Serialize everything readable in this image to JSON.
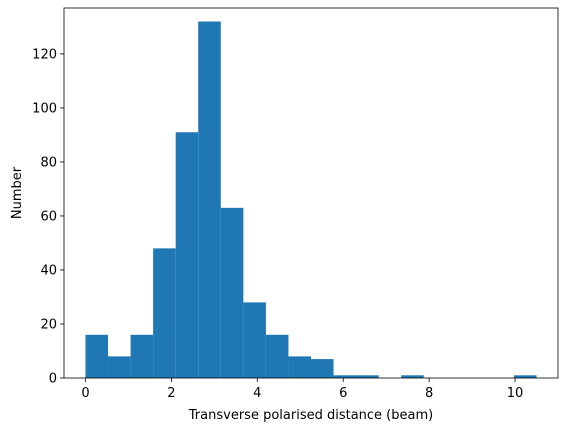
{
  "chart_data": {
    "type": "bar",
    "subtype": "histogram",
    "xlabel": "Transverse polarised distance (beam)",
    "ylabel": "Number",
    "xlim": [
      -0.5,
      11.0
    ],
    "ylim": [
      0,
      137
    ],
    "xticks": [
      0,
      2,
      4,
      6,
      8,
      10
    ],
    "yticks": [
      0,
      20,
      40,
      60,
      80,
      100,
      120
    ],
    "bin_edges": [
      0.0,
      0.525,
      1.05,
      1.575,
      2.1,
      2.625,
      3.15,
      3.675,
      4.2,
      4.725,
      5.25,
      5.775,
      6.3,
      6.825,
      7.35,
      7.875,
      8.4,
      8.925,
      9.45,
      9.975,
      10.5
    ],
    "counts": [
      16,
      8,
      16,
      48,
      91,
      132,
      63,
      28,
      16,
      8,
      7,
      1,
      1,
      0,
      1,
      0,
      0,
      0,
      0,
      1
    ],
    "bar_color": "#1f77b4",
    "grid": false,
    "legend": "none"
  }
}
